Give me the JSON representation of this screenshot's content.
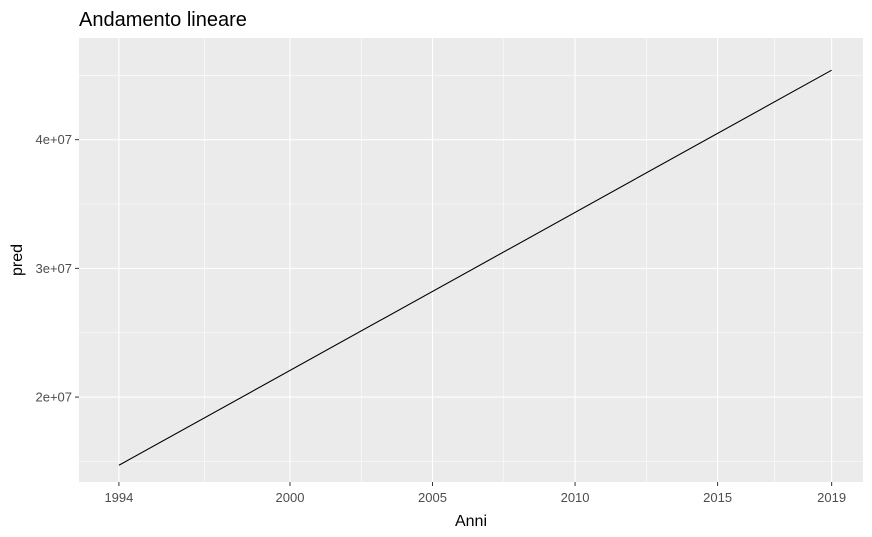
{
  "chart_data": {
    "type": "line",
    "title": "Andamento lineare",
    "xlabel": "Anni",
    "ylabel": "pred",
    "xlim": [
      1992.6,
      2020.1
    ],
    "ylim": [
      13400000,
      47900000
    ],
    "x_ticks": [
      1994,
      2000,
      2005,
      2010,
      2015,
      2019
    ],
    "x_tick_labels": [
      "1994",
      "2000",
      "2005",
      "2010",
      "2015",
      "2019"
    ],
    "y_ticks": [
      20000000,
      30000000,
      40000000
    ],
    "y_tick_labels": [
      "2e+07",
      "3e+07",
      "4e+07"
    ],
    "grid": true,
    "legend": false,
    "series": [
      {
        "x": [
          1994,
          2019
        ],
        "values": [
          14700000,
          45400000
        ]
      }
    ],
    "colors": {
      "panel_background": "#ebebeb",
      "grid_major": "#ffffff",
      "line": "#000000",
      "tick_text": "#4d4d4d"
    }
  }
}
